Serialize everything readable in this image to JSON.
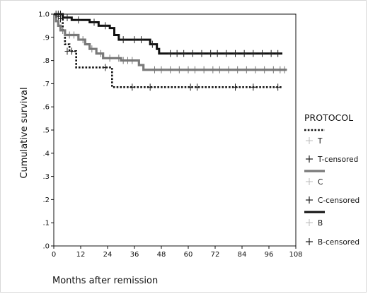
{
  "chart_data": {
    "type": "line",
    "subtype": "kaplan-meier",
    "title": "",
    "xlabel": "Months after remission",
    "ylabel": "Cumulative survival",
    "xlim": [
      0,
      108
    ],
    "ylim": [
      0,
      1.0
    ],
    "x_ticks": [
      0,
      12,
      24,
      36,
      48,
      60,
      72,
      84,
      96,
      108
    ],
    "x_tick_labels": [
      "0",
      "12",
      "24",
      "36",
      "48",
      "60",
      "72",
      "84",
      "96",
      "108"
    ],
    "y_ticks": [
      0,
      0.1,
      0.2,
      0.3,
      0.4,
      0.5,
      0.6,
      0.7,
      0.8,
      0.9,
      1.0
    ],
    "y_tick_labels": [
      ".0",
      ".1",
      ".2",
      ".3",
      ".4",
      ".5",
      ".6",
      ".7",
      ".8",
      ".9",
      "1.0"
    ],
    "grid": false,
    "legend": {
      "title": "PROTOCOL",
      "position": "right",
      "entries": [
        "T",
        "T-censored",
        "C",
        "C-censored",
        "B",
        "B-censored"
      ]
    },
    "series": [
      {
        "name": "T",
        "style": "dotted",
        "color": "#111111",
        "steps": [
          [
            0,
            1.0
          ],
          [
            4,
            0.93
          ],
          [
            5,
            0.87
          ],
          [
            7,
            0.84
          ],
          [
            10,
            0.77
          ],
          [
            25,
            0.77
          ],
          [
            26,
            0.685
          ],
          [
            102,
            0.685
          ]
        ],
        "censored": [
          [
            2,
            0.99
          ],
          [
            3,
            0.98
          ],
          [
            6,
            0.84
          ],
          [
            8,
            0.84
          ],
          [
            23,
            0.77
          ],
          [
            35,
            0.685
          ],
          [
            43,
            0.685
          ],
          [
            61,
            0.685
          ],
          [
            64,
            0.685
          ],
          [
            81,
            0.685
          ],
          [
            89,
            0.685
          ],
          [
            100,
            0.685
          ]
        ]
      },
      {
        "name": "C",
        "style": "solid",
        "color": "#7a7a7a",
        "steps": [
          [
            0,
            1.0
          ],
          [
            1,
            0.97
          ],
          [
            2,
            0.95
          ],
          [
            3,
            0.93
          ],
          [
            5,
            0.91
          ],
          [
            11,
            0.89
          ],
          [
            14,
            0.87
          ],
          [
            16,
            0.85
          ],
          [
            19,
            0.83
          ],
          [
            22,
            0.81
          ],
          [
            28,
            0.81
          ],
          [
            30,
            0.8
          ],
          [
            36,
            0.8
          ],
          [
            38,
            0.78
          ],
          [
            40,
            0.76
          ],
          [
            104,
            0.76
          ]
        ],
        "censored": [
          [
            4,
            0.93
          ],
          [
            7,
            0.91
          ],
          [
            9,
            0.91
          ],
          [
            13,
            0.89
          ],
          [
            17,
            0.85
          ],
          [
            21,
            0.83
          ],
          [
            25,
            0.81
          ],
          [
            29,
            0.81
          ],
          [
            31,
            0.8
          ],
          [
            33,
            0.8
          ],
          [
            35,
            0.8
          ],
          [
            45,
            0.76
          ],
          [
            48,
            0.76
          ],
          [
            52,
            0.76
          ],
          [
            56,
            0.76
          ],
          [
            60,
            0.76
          ],
          [
            63,
            0.76
          ],
          [
            67,
            0.76
          ],
          [
            71,
            0.76
          ],
          [
            74,
            0.76
          ],
          [
            78,
            0.76
          ],
          [
            82,
            0.76
          ],
          [
            86,
            0.76
          ],
          [
            90,
            0.76
          ],
          [
            94,
            0.76
          ],
          [
            98,
            0.76
          ],
          [
            101,
            0.76
          ],
          [
            103,
            0.76
          ]
        ]
      },
      {
        "name": "B",
        "style": "solid",
        "color": "#111111",
        "steps": [
          [
            0,
            1.0
          ],
          [
            4,
            0.985
          ],
          [
            8,
            0.975
          ],
          [
            16,
            0.965
          ],
          [
            20,
            0.95
          ],
          [
            25,
            0.94
          ],
          [
            27,
            0.91
          ],
          [
            29,
            0.89
          ],
          [
            43,
            0.87
          ],
          [
            46,
            0.85
          ],
          [
            47,
            0.83
          ],
          [
            102,
            0.83
          ]
        ],
        "censored": [
          [
            1,
            1.0
          ],
          [
            2,
            1.0
          ],
          [
            3,
            1.0
          ],
          [
            6,
            0.985
          ],
          [
            11,
            0.975
          ],
          [
            18,
            0.965
          ],
          [
            23,
            0.95
          ],
          [
            31,
            0.89
          ],
          [
            36,
            0.89
          ],
          [
            39,
            0.89
          ],
          [
            44,
            0.87
          ],
          [
            52,
            0.83
          ],
          [
            55,
            0.83
          ],
          [
            58,
            0.83
          ],
          [
            62,
            0.83
          ],
          [
            66,
            0.83
          ],
          [
            70,
            0.83
          ],
          [
            73,
            0.83
          ],
          [
            77,
            0.83
          ],
          [
            81,
            0.83
          ],
          [
            85,
            0.83
          ],
          [
            89,
            0.83
          ],
          [
            93,
            0.83
          ],
          [
            97,
            0.83
          ],
          [
            100,
            0.83
          ]
        ]
      }
    ]
  }
}
